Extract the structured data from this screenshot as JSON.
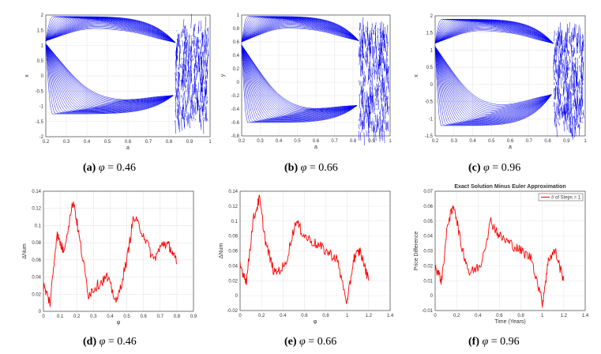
{
  "chart_data": [
    {
      "type": "line",
      "id": "a",
      "xlabel": "a",
      "ylabel": "x",
      "xlim": [
        0.2,
        1
      ],
      "ylim": [
        -2,
        2
      ],
      "xticks": [
        "0.2",
        "0.3",
        "0.4",
        "0.5",
        "0.6",
        "0.7",
        "0.8",
        "0.9",
        "1"
      ],
      "yticks": [
        "-2",
        "-1.5",
        "-1",
        "-0.5",
        "0",
        "0.5",
        "1",
        "1.5",
        "2"
      ],
      "series_color": "#0000ee",
      "caption": {
        "label": "(a)",
        "symbol": "φ",
        "equals": "= 0.46"
      },
      "upper_branch": {
        "start": 1.15,
        "peak": 1.95,
        "merge_a": 0.83,
        "merge_y": 1.1
      },
      "lower_branch": {
        "start": 1.05,
        "trough": -1.25,
        "merge_a": 0.82,
        "merge_y": -0.65
      },
      "chaos_range": [
        -1.5,
        1.6
      ]
    },
    {
      "type": "line",
      "id": "b",
      "xlabel": "a",
      "ylabel": "y",
      "xlim": [
        0.2,
        1
      ],
      "ylim": [
        -0.8,
        1
      ],
      "xticks": [
        "0.2",
        "0.3",
        "0.4",
        "0.5",
        "0.6",
        "0.7",
        "0.8",
        "0.9",
        "1"
      ],
      "yticks": [
        "-0.8",
        "-0.6",
        "-0.4",
        "-0.2",
        "0",
        "0.2",
        "0.4",
        "0.6",
        "0.8",
        "1"
      ],
      "series_color": "#0000ee",
      "caption": {
        "label": "(b)",
        "symbol": "φ",
        "equals": "= 0.66"
      },
      "upper_branch": {
        "start": 0.6,
        "peak": 0.98,
        "merge_a": 0.83,
        "merge_y": 0.62
      },
      "lower_branch": {
        "start": 0.55,
        "trough": -0.6,
        "merge_a": 0.82,
        "merge_y": -0.35
      },
      "chaos_range": [
        -0.75,
        0.8
      ]
    },
    {
      "type": "line",
      "id": "c",
      "xlabel": "a",
      "ylabel": "x",
      "xlim": [
        0.2,
        1
      ],
      "ylim": [
        -1.5,
        2
      ],
      "xticks": [
        "0.2",
        "0.3",
        "0.4",
        "0.5",
        "0.6",
        "0.7",
        "0.8",
        "0.9",
        "1"
      ],
      "yticks": [
        "-1.5",
        "-1",
        "-0.5",
        "0",
        "0.5",
        "1",
        "1.5",
        "2"
      ],
      "series_color": "#0000ee",
      "caption": {
        "label": "(c)",
        "symbol": "φ",
        "equals": "= 0.96"
      },
      "upper_branch": {
        "start": 1.2,
        "peak": 1.9,
        "merge_a": 0.83,
        "merge_y": 1.2
      },
      "lower_branch": {
        "start": 1.1,
        "trough": -1.2,
        "merge_a": 0.82,
        "merge_y": -0.3
      },
      "chaos_range": [
        -1.3,
        1.5
      ]
    },
    {
      "type": "line",
      "id": "d",
      "xlabel": "φ",
      "ylabel": "ΔNum",
      "xlim": [
        0,
        0.9
      ],
      "ylim": [
        0,
        0.14
      ],
      "xticks": [
        "0",
        "0.1",
        "0.2",
        "0.3",
        "0.4",
        "0.5",
        "0.6",
        "0.7",
        "0.8",
        "0.9"
      ],
      "yticks": [
        "0",
        "0.02",
        "0.04",
        "0.06",
        "0.08",
        "0.1",
        "0.12",
        "0.14"
      ],
      "series_color": "#ff0000",
      "caption": {
        "label": "(d)",
        "symbol": "φ",
        "equals": "= 0.46"
      },
      "x_end": 0.8,
      "keypoints": [
        [
          0,
          0.03
        ],
        [
          0.04,
          0.01
        ],
        [
          0.08,
          0.09
        ],
        [
          0.12,
          0.07
        ],
        [
          0.18,
          0.13
        ],
        [
          0.22,
          0.08
        ],
        [
          0.27,
          0.02
        ],
        [
          0.32,
          0.03
        ],
        [
          0.38,
          0.04
        ],
        [
          0.44,
          0.01
        ],
        [
          0.5,
          0.06
        ],
        [
          0.54,
          0.11
        ],
        [
          0.6,
          0.09
        ],
        [
          0.66,
          0.06
        ],
        [
          0.72,
          0.08
        ],
        [
          0.76,
          0.075
        ],
        [
          0.8,
          0.055
        ]
      ]
    },
    {
      "type": "line",
      "id": "e",
      "xlabel": "φ",
      "ylabel": "ΔNum",
      "xlim": [
        0,
        1.4
      ],
      "ylim": [
        -0.02,
        0.14
      ],
      "xticks": [
        "0",
        "0.2",
        "0.4",
        "0.6",
        "0.8",
        "1",
        "1.2",
        "1.4"
      ],
      "yticks": [
        "-0.02",
        "0",
        "0.02",
        "0.04",
        "0.06",
        "0.08",
        "0.1",
        "0.12",
        "0.14"
      ],
      "series_color": "#ff0000",
      "caption": {
        "label": "(e)",
        "symbol": "φ",
        "equals": "= 0.66"
      },
      "x_end": 1.2,
      "keypoints": [
        [
          0,
          0.04
        ],
        [
          0.06,
          0.02
        ],
        [
          0.12,
          0.1
        ],
        [
          0.18,
          0.13
        ],
        [
          0.24,
          0.07
        ],
        [
          0.32,
          0.03
        ],
        [
          0.42,
          0.04
        ],
        [
          0.52,
          0.1
        ],
        [
          0.6,
          0.08
        ],
        [
          0.7,
          0.07
        ],
        [
          0.8,
          0.06
        ],
        [
          0.9,
          0.05
        ],
        [
          1.0,
          -0.01
        ],
        [
          1.06,
          0.05
        ],
        [
          1.12,
          0.06
        ],
        [
          1.2,
          0.02
        ]
      ]
    },
    {
      "type": "line",
      "id": "f",
      "title": "Exact Solution Minus Euler Approximation",
      "xlabel": "Time (Years)",
      "ylabel": "Price Difference",
      "xlim": [
        0,
        1.4
      ],
      "ylim": [
        -0.01,
        0.07
      ],
      "xticks": [
        "0",
        "0.2",
        "0.4",
        "0.6",
        "0.8",
        "1",
        "1.2",
        "1.4"
      ],
      "yticks": [
        "-0.01",
        "0",
        "0.01",
        "0.02",
        "0.03",
        "0.04",
        "0.05",
        "0.06",
        "0.07"
      ],
      "legend": "# of Steps = 1",
      "legend_position": "top-right",
      "series_color": "#ff0000",
      "caption": {
        "label": "(f)",
        "symbol": "φ",
        "equals": "= 0.96"
      },
      "x_end": 1.2,
      "keypoints": [
        [
          0,
          0.02
        ],
        [
          0.06,
          0.01
        ],
        [
          0.12,
          0.05
        ],
        [
          0.18,
          0.06
        ],
        [
          0.24,
          0.035
        ],
        [
          0.32,
          0.015
        ],
        [
          0.42,
          0.02
        ],
        [
          0.52,
          0.05
        ],
        [
          0.6,
          0.04
        ],
        [
          0.7,
          0.035
        ],
        [
          0.8,
          0.03
        ],
        [
          0.9,
          0.025
        ],
        [
          1.0,
          -0.005
        ],
        [
          1.06,
          0.025
        ],
        [
          1.12,
          0.03
        ],
        [
          1.2,
          0.01
        ]
      ]
    }
  ]
}
